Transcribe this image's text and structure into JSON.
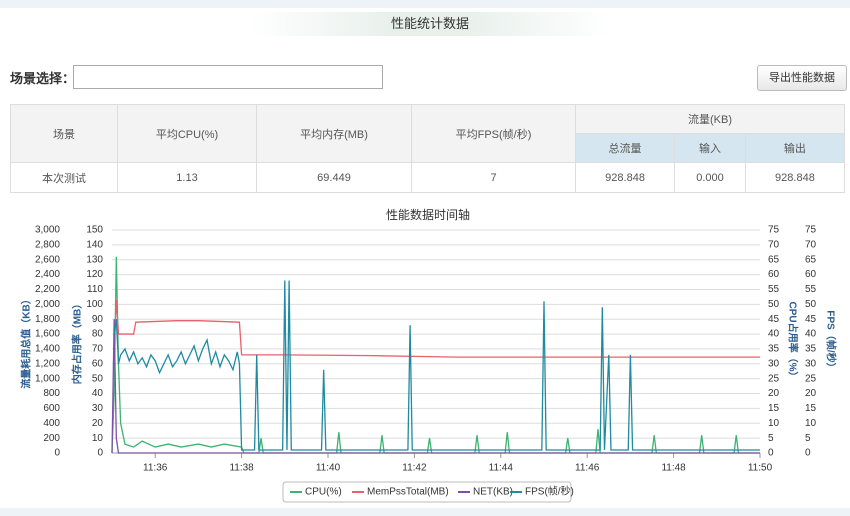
{
  "header": {
    "title": "性能统计数据"
  },
  "scene": {
    "label": "场景选择：",
    "button": "导出性能数据"
  },
  "table": {
    "headers": [
      "场景",
      "平均CPU(%)",
      "平均内存(MB)",
      "平均FPS(帧/秒)",
      "流量(KB)"
    ],
    "subheaders": [
      "总流量",
      "输入",
      "输出"
    ],
    "rows": [
      [
        "本次测试",
        "1.13",
        "69.449",
        "7",
        "928.848",
        "0.000",
        "928.848"
      ]
    ]
  },
  "chart_data": {
    "type": "line",
    "title": "性能数据时间轴",
    "xlim": [
      695,
      710
    ],
    "xticks": [
      {
        "value": 696,
        "label": "11:36"
      },
      {
        "value": 698,
        "label": "11:38"
      },
      {
        "value": 700,
        "label": "11:40"
      },
      {
        "value": 702,
        "label": "11:42"
      },
      {
        "value": 704,
        "label": "11:44"
      },
      {
        "value": 706,
        "label": "11:46"
      },
      {
        "value": 708,
        "label": "11:48"
      },
      {
        "value": 710,
        "label": "11:50"
      }
    ],
    "ylabel": "内存占用率（MB）",
    "ylim": [
      0,
      150
    ],
    "yticks": [
      0,
      10,
      20,
      30,
      40,
      50,
      60,
      70,
      80,
      90,
      100,
      110,
      120,
      130,
      140,
      150
    ],
    "y2label": "CPU占用率（%）",
    "y2lim": [
      0,
      75
    ],
    "y2ticks": [
      0,
      5,
      10,
      15,
      20,
      25,
      30,
      35,
      40,
      45,
      50,
      55,
      60,
      65,
      70,
      75
    ],
    "y3label": "流量耗用总值（KB）",
    "y3lim": [
      0,
      3000
    ],
    "y3ticks": [
      0,
      200,
      400,
      600,
      800,
      {
        "value": 1000,
        "label": "1,000"
      },
      {
        "value": 1200,
        "label": "1,200"
      },
      {
        "value": 1400,
        "label": "1,400"
      },
      {
        "value": 1600,
        "label": "1,600"
      },
      {
        "value": 1800,
        "label": "1,800"
      },
      {
        "value": 2000,
        "label": "2,000"
      },
      {
        "value": 2200,
        "label": "2,200"
      },
      {
        "value": 2400,
        "label": "2,400"
      },
      {
        "value": 2600,
        "label": "2,600"
      },
      {
        "value": 2800,
        "label": "2,800"
      },
      {
        "value": 3000,
        "label": "3,000"
      }
    ],
    "y4label": "FPS（帧/秒）",
    "y4lim": [
      0,
      75
    ],
    "y4ticks": [
      0,
      5,
      10,
      15,
      20,
      25,
      30,
      35,
      40,
      45,
      50,
      55,
      60,
      65,
      70,
      75
    ],
    "grid": true,
    "series": [
      {
        "name": "CPU(%)",
        "color": "#3cb371",
        "axis": "y2",
        "x": [
          695.0,
          695.05,
          695.1,
          695.15,
          695.2,
          695.3,
          695.5,
          695.7,
          696.0,
          696.3,
          696.6,
          697.0,
          697.3,
          697.6,
          698.0,
          698.05,
          698.4,
          698.45,
          698.5,
          700.2,
          700.25,
          700.3,
          701.2,
          701.25,
          701.3,
          702.3,
          702.35,
          702.4,
          703.4,
          703.45,
          703.5,
          704.1,
          704.15,
          704.2,
          705.5,
          705.55,
          705.6,
          706.2,
          706.25,
          706.3,
          707.5,
          707.55,
          707.6,
          708.6,
          708.65,
          708.7,
          709.4,
          709.45,
          709.5,
          710
        ],
        "values": [
          0,
          20,
          66,
          30,
          10,
          3,
          2,
          4,
          2,
          3,
          2,
          3,
          2,
          3,
          2,
          0,
          0,
          5,
          0,
          0,
          7,
          0,
          0,
          6,
          0,
          0,
          5,
          0,
          0,
          6,
          0,
          0,
          7,
          0,
          0,
          5,
          0,
          0,
          8,
          0,
          0,
          6,
          0,
          0,
          6,
          0,
          0,
          6,
          0,
          0
        ]
      },
      {
        "name": "MemPssTotal(MB)",
        "color": "#e8606a",
        "axis": "y",
        "x": [
          695.05,
          695.1,
          695.15,
          695.5,
          695.55,
          696.5,
          697.0,
          697.95,
          698.0,
          699.0,
          701.0,
          702.0,
          703.0,
          704.0,
          706.0,
          708.0,
          710.0
        ],
        "values": [
          70,
          103,
          80,
          80,
          88,
          89,
          89,
          88,
          66,
          66,
          65.5,
          65,
          64.5,
          64.5,
          64.5,
          64.5,
          64.5
        ]
      },
      {
        "name": "NET(KB)",
        "color": "#7b52a8",
        "axis": "y3",
        "x": [
          695.0,
          695.05,
          695.1,
          695.15,
          710
        ],
        "values": [
          0,
          1800,
          200,
          0,
          0
        ]
      },
      {
        "name": "FPS(帧/秒)",
        "color": "#1f8aa0",
        "axis": "y4",
        "x": [
          695.05,
          695.1,
          695.15,
          695.2,
          695.3,
          695.4,
          695.5,
          695.6,
          695.7,
          695.8,
          695.9,
          696.0,
          696.1,
          696.2,
          696.3,
          696.4,
          696.5,
          696.6,
          696.7,
          696.8,
          696.9,
          697.0,
          697.1,
          697.2,
          697.3,
          697.4,
          697.5,
          697.6,
          697.7,
          697.8,
          697.9,
          697.95,
          698.0,
          698.3,
          698.35,
          698.4,
          698.95,
          699.0,
          699.05,
          699.1,
          699.15,
          699.85,
          699.9,
          699.95,
          701.85,
          701.9,
          701.95,
          704.95,
          705.0,
          705.05,
          706.3,
          706.35,
          706.4,
          706.5,
          706.55,
          706.95,
          707.0,
          707.05,
          710
        ],
        "values": [
          40,
          45,
          30,
          33,
          35,
          31,
          34,
          30,
          32,
          29,
          33,
          31,
          27,
          30,
          33,
          29,
          31,
          34,
          30,
          33,
          36,
          31,
          35,
          38,
          30,
          34,
          29,
          33,
          31,
          28,
          34,
          30,
          1,
          1,
          33,
          1,
          1,
          58,
          1,
          58,
          1,
          1,
          28,
          1,
          1,
          43,
          1,
          1,
          51,
          1,
          1,
          49,
          1,
          33,
          1,
          1,
          33,
          1,
          1
        ]
      }
    ]
  }
}
